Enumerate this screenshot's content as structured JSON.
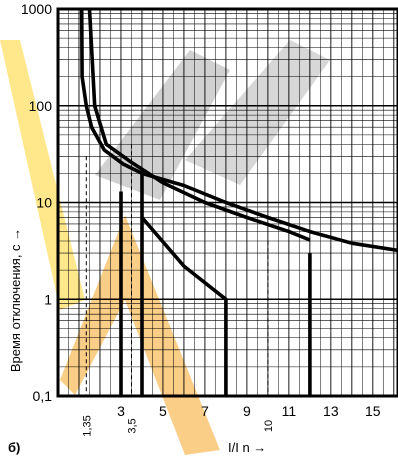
{
  "panel_label": "б)",
  "colors": {
    "grid": "#000000",
    "curve": "#000000",
    "watermark_gray": "#9a9a9a",
    "watermark_orange": "#f5a623",
    "watermark_yellow": "#ffd21a"
  },
  "chart_data": {
    "type": "line",
    "title": "",
    "xlabel": "I/I n →",
    "ylabel": "Время отключения, с →",
    "x_scale": "linear",
    "y_scale": "log",
    "xlim": [
      0,
      16.2
    ],
    "ylim": [
      0.1,
      1000
    ],
    "x_ticks": [
      "3",
      "5",
      "7",
      "9",
      "11",
      "13",
      "15"
    ],
    "x_minor_labels": [
      "1,35",
      "3,5",
      "10"
    ],
    "y_ticks": [
      "0,1",
      "1",
      "10",
      "100",
      "1000"
    ],
    "grid": true,
    "series": [
      {
        "style": "solid",
        "points": [
          [
            1.13,
            1000
          ],
          [
            1.15,
            200
          ],
          [
            1.35,
            100
          ],
          [
            1.6,
            60
          ],
          [
            2.2,
            35
          ],
          [
            3.1,
            25
          ],
          [
            4.0,
            20
          ],
          [
            6.0,
            15
          ],
          [
            8.0,
            10
          ],
          [
            10,
            7
          ],
          [
            12,
            5
          ],
          [
            14,
            3.8
          ],
          [
            16.2,
            3.2
          ]
        ]
      },
      {
        "style": "solid",
        "points": [
          [
            1.5,
            1000
          ],
          [
            1.75,
            100
          ],
          [
            2.3,
            40
          ],
          [
            3.5,
            26
          ],
          [
            5.0,
            16
          ],
          [
            7.0,
            10
          ],
          [
            9.0,
            7
          ],
          [
            11.0,
            5
          ],
          [
            12.0,
            4.1
          ]
        ]
      },
      {
        "style": "solid",
        "points": [
          [
            3.0,
            13
          ],
          [
            3.0,
            0.1
          ]
        ]
      },
      {
        "style": "solid",
        "points": [
          [
            4.0,
            22
          ],
          [
            4.0,
            0.1
          ]
        ]
      },
      {
        "style": "solid",
        "points": [
          [
            4.0,
            7
          ],
          [
            6.0,
            2.2
          ],
          [
            8.0,
            1.0
          ],
          [
            8.0,
            0.1
          ]
        ]
      },
      {
        "style": "solid",
        "points": [
          [
            12.0,
            3.0
          ],
          [
            12.0,
            0.1
          ]
        ]
      },
      {
        "style": "dashed",
        "points": [
          [
            1.35,
            30
          ],
          [
            1.35,
            0.1
          ]
        ]
      },
      {
        "style": "dashed",
        "points": [
          [
            3.5,
            40
          ],
          [
            3.5,
            0.1
          ]
        ]
      },
      {
        "style": "dashed",
        "points": [
          [
            10.0,
            4.0
          ],
          [
            10.0,
            0.1
          ]
        ]
      }
    ]
  }
}
